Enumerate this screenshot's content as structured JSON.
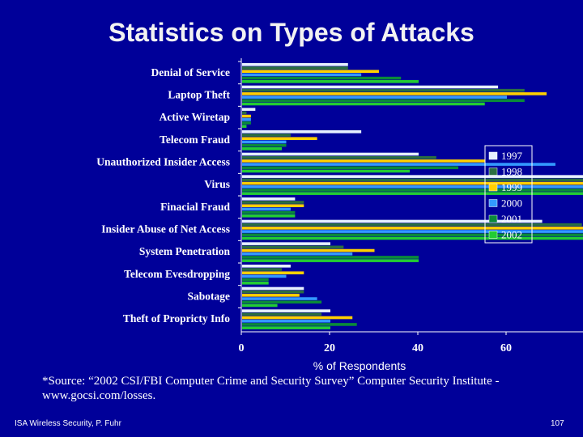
{
  "slide": {
    "title": "Statistics on Types of Attacks",
    "source": "*Source: “2002 CSI/FBI Computer Crime and Security Survey” Computer Security Institute - www.gocsi.com/losses.",
    "footer_left": "ISA Wireless Security, P. Fuhr",
    "page_number": "107"
  },
  "colors": {
    "background": "#000099",
    "axis": "#ffffff",
    "label": "#ffffff"
  },
  "chart_data": {
    "type": "bar",
    "orientation": "horizontal",
    "title": "",
    "xlabel": "% of Respondents",
    "ylabel": "",
    "xlim": [
      0,
      120
    ],
    "xticks": [
      0,
      20,
      40,
      60,
      80,
      100,
      120
    ],
    "grid": false,
    "legend_position": "right",
    "categories": [
      "Denial of Service",
      "Laptop Theft",
      "Active Wiretap",
      "Telecom Fraud",
      "Unauthorized Insider Access",
      "Virus",
      "Finacial Fraud",
      "Insider Abuse of Net Access",
      "System Penetration",
      "Telecom Evesdropping",
      "Sabotage",
      "Theft of Propricty Info"
    ],
    "series": [
      {
        "name": "1997",
        "color": "#e6f0ff",
        "values": [
          24,
          58,
          3,
          27,
          40,
          82,
          12,
          68,
          20,
          11,
          14,
          20
        ]
      },
      {
        "name": "1998",
        "color": "#2a6e42",
        "values": [
          24,
          64,
          1,
          11,
          44,
          83,
          14,
          77,
          23,
          9,
          14,
          18
        ]
      },
      {
        "name": "1999",
        "color": "#ffd000",
        "values": [
          31,
          69,
          2,
          17,
          55,
          90,
          14,
          97,
          30,
          14,
          13,
          25
        ]
      },
      {
        "name": "2000",
        "color": "#3399ff",
        "values": [
          27,
          60,
          2,
          10,
          71,
          85,
          11,
          79,
          25,
          10,
          17,
          20
        ]
      },
      {
        "name": "2001",
        "color": "#0a8a3a",
        "values": [
          36,
          64,
          2,
          10,
          49,
          94,
          12,
          91,
          40,
          6,
          18,
          26
        ]
      },
      {
        "name": "2002",
        "color": "#22cc33",
        "values": [
          40,
          55,
          1,
          9,
          38,
          85,
          12,
          78,
          40,
          6,
          8,
          20
        ]
      }
    ]
  }
}
